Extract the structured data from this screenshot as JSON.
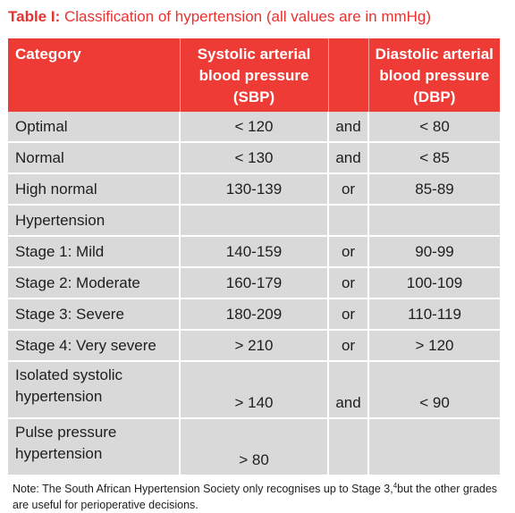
{
  "title": {
    "label": "Table I:",
    "text": "Classification  of hypertension (all values  are in mmHg)"
  },
  "table": {
    "headers": {
      "category": "Category",
      "sbp_line1": "Systolic arterial",
      "sbp_line2": "blood pressure",
      "sbp_line3": "(SBP)",
      "dbp_line1": "Diastolic arterial",
      "dbp_line2": "blood pressure",
      "dbp_line3": "(DBP)"
    },
    "rows": [
      {
        "category": "Optimal",
        "sbp": "< 120",
        "conj": "and",
        "dbp": "< 80"
      },
      {
        "category": "Normal",
        "sbp": "< 130",
        "conj": "and",
        "dbp": "< 85"
      },
      {
        "category": "High normal",
        "sbp": "130-139",
        "conj": "or",
        "dbp": "85-89"
      },
      {
        "category": "Hypertension",
        "sbp": "",
        "conj": "",
        "dbp": ""
      },
      {
        "category": "Stage 1: Mild",
        "sbp": "140-159",
        "conj": "or",
        "dbp": "90-99"
      },
      {
        "category": "Stage 2: Moderate",
        "sbp": "160-179",
        "conj": "or",
        "dbp": "100-109"
      },
      {
        "category": "Stage 3: Severe",
        "sbp": "180-209",
        "conj": "or",
        "dbp": "110-119"
      },
      {
        "category": "Stage 4: Very severe",
        "sbp": "> 210",
        "conj": "or",
        "dbp": "> 120"
      },
      {
        "category_line1": "Isolated systolic",
        "category_line2": "hypertension",
        "sbp": "> 140",
        "conj": "and",
        "dbp": "< 90"
      },
      {
        "category_line1": "Pulse pressure",
        "category_line2": "hypertension",
        "sbp": "> 80",
        "conj": "",
        "dbp": ""
      }
    ]
  },
  "note": {
    "text_before": "Note: The South African Hypertension Society only recognises up to Stage 3,",
    "superscript": "4",
    "text_after": "but the other grades are useful for perioperative decisions."
  },
  "colors": {
    "header_bg": "#ef3b36",
    "title_color": "#e8322f",
    "row_bg": "#d9d9d9"
  }
}
